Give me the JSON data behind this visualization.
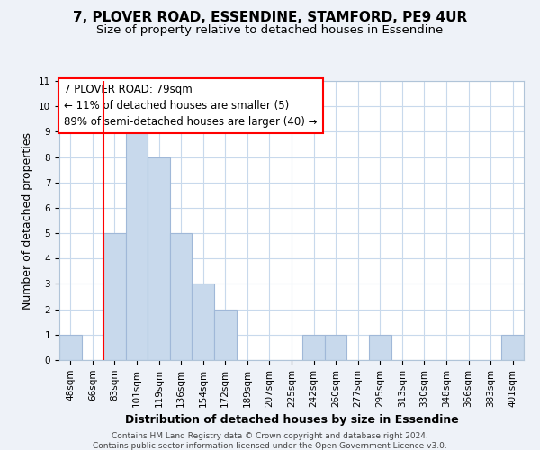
{
  "title": "7, PLOVER ROAD, ESSENDINE, STAMFORD, PE9 4UR",
  "subtitle": "Size of property relative to detached houses in Essendine",
  "xlabel": "Distribution of detached houses by size in Essendine",
  "ylabel": "Number of detached properties",
  "bin_labels": [
    "48sqm",
    "66sqm",
    "83sqm",
    "101sqm",
    "119sqm",
    "136sqm",
    "154sqm",
    "172sqm",
    "189sqm",
    "207sqm",
    "225sqm",
    "242sqm",
    "260sqm",
    "277sqm",
    "295sqm",
    "313sqm",
    "330sqm",
    "348sqm",
    "366sqm",
    "383sqm",
    "401sqm"
  ],
  "bar_heights": [
    1,
    0,
    5,
    9,
    8,
    5,
    3,
    2,
    0,
    0,
    0,
    1,
    1,
    0,
    1,
    0,
    0,
    0,
    0,
    0,
    1
  ],
  "bar_color": "#c8d9ec",
  "bar_edge_color": "#a0b8d8",
  "ylim": [
    0,
    11
  ],
  "yticks": [
    0,
    1,
    2,
    3,
    4,
    5,
    6,
    7,
    8,
    9,
    10,
    11
  ],
  "red_line_x": 1.5,
  "annotation_line1": "7 PLOVER ROAD: 79sqm",
  "annotation_line2": "← 11% of detached houses are smaller (5)",
  "annotation_line3": "89% of semi-detached houses are larger (40) →",
  "footer_line1": "Contains HM Land Registry data © Crown copyright and database right 2024.",
  "footer_line2": "Contains public sector information licensed under the Open Government Licence v3.0.",
  "background_color": "#eef2f8",
  "plot_background_color": "#ffffff",
  "grid_color": "#c8d9ec",
  "title_fontsize": 11,
  "subtitle_fontsize": 9.5,
  "axis_label_fontsize": 9,
  "tick_fontsize": 7.5,
  "footer_fontsize": 6.5,
  "annotation_fontsize": 8.5
}
